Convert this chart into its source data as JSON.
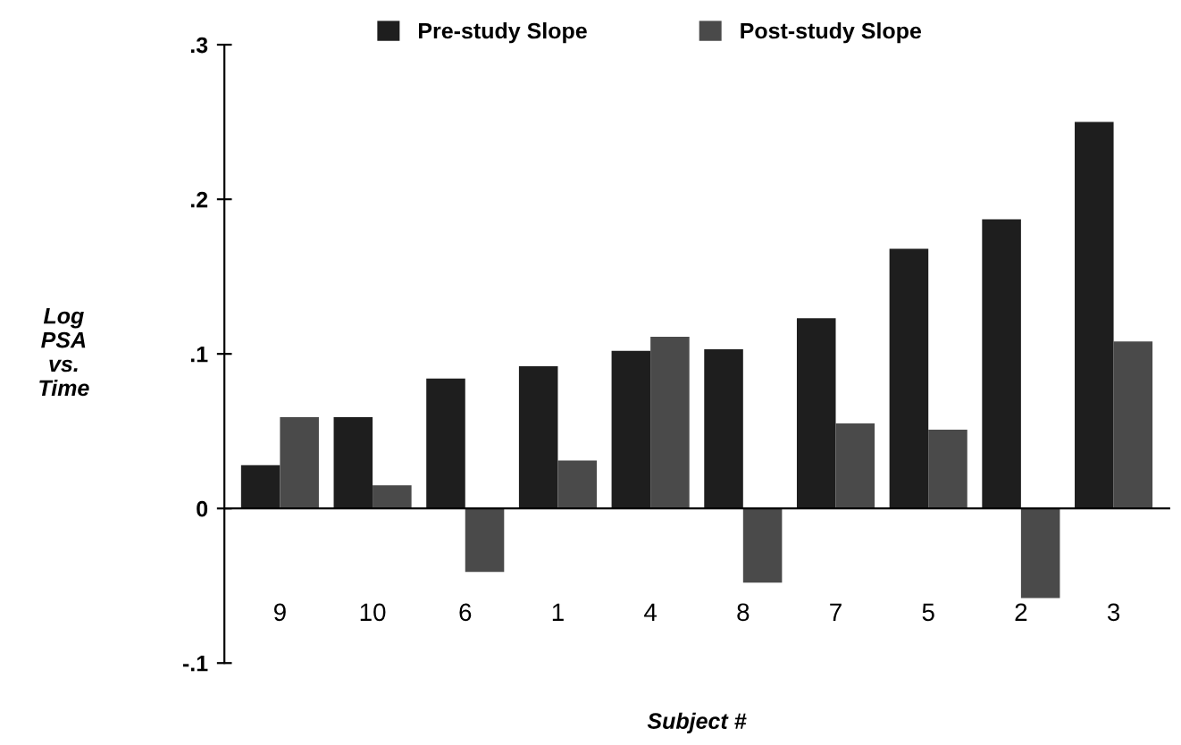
{
  "chart_data": {
    "type": "bar",
    "xlabel": "Subject #",
    "ylabel": "Log\nPSA\nvs.\nTime",
    "categories": [
      "9",
      "10",
      "6",
      "1",
      "4",
      "8",
      "7",
      "5",
      "2",
      "3"
    ],
    "series": [
      {
        "name": "Pre-study Slope",
        "color": "#1e1e1e",
        "values": [
          0.028,
          0.059,
          0.084,
          0.092,
          0.102,
          0.103,
          0.123,
          0.168,
          0.187,
          0.25
        ]
      },
      {
        "name": "Post-study Slope",
        "color": "#4a4a4a",
        "values": [
          0.059,
          0.015,
          -0.041,
          0.031,
          0.111,
          -0.048,
          0.055,
          0.051,
          -0.058,
          0.108
        ]
      }
    ],
    "ylim": [
      -0.1,
      0.3
    ],
    "yticks": [
      {
        "value": -0.1,
        "label": "-.1"
      },
      0,
      {
        "value": 0.1,
        "label": ".1"
      },
      {
        "value": 0.2,
        "label": ".2"
      },
      {
        "value": 0.3,
        "label": ".3"
      }
    ],
    "legend": "top"
  }
}
